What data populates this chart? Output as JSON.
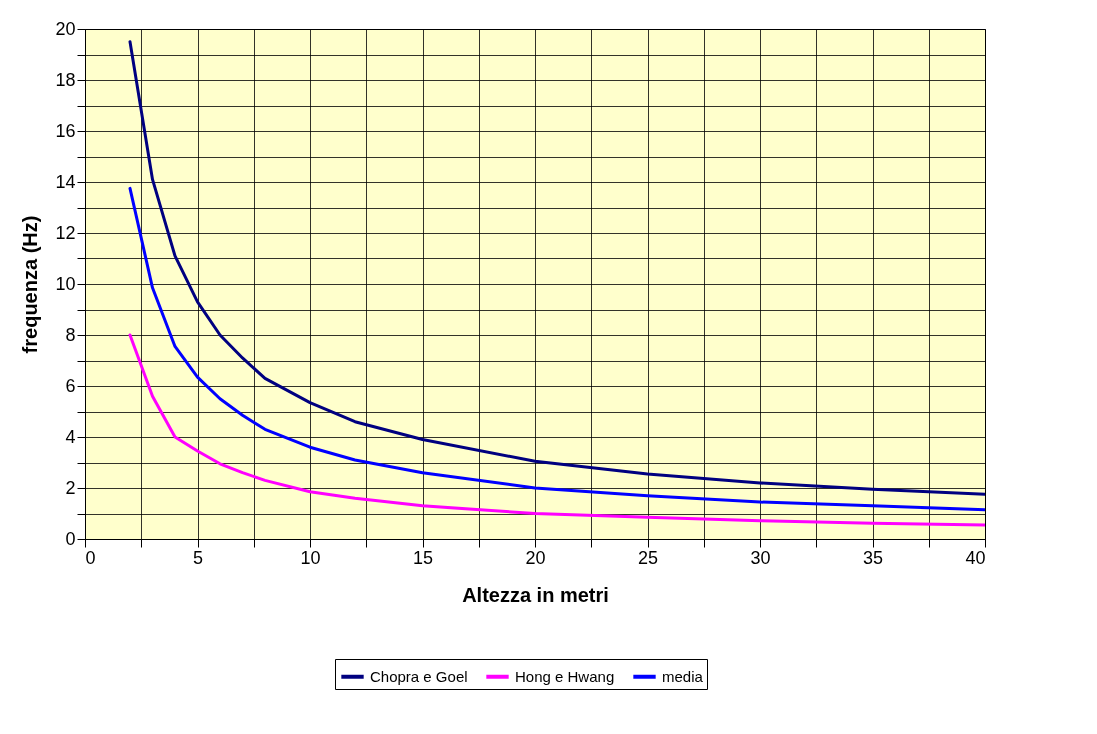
{
  "chart_data": {
    "type": "line",
    "xlabel": "Altezza in metri",
    "ylabel": "frequenza (Hz)",
    "x": [
      2,
      3,
      4,
      5,
      6,
      7,
      8,
      10,
      12,
      15,
      20,
      25,
      30,
      35,
      40
    ],
    "series": [
      {
        "name": "Chopra e Goel",
        "color": "#000080",
        "values": [
          19.5,
          14.1,
          11.1,
          9.3,
          8.0,
          7.1,
          6.3,
          5.35,
          4.6,
          3.9,
          3.05,
          2.55,
          2.2,
          1.95,
          1.75
        ]
      },
      {
        "name": "Hong e Hwang",
        "color": "#ff00ff",
        "values": [
          8.0,
          5.6,
          4.0,
          3.45,
          2.95,
          2.6,
          2.3,
          1.85,
          1.6,
          1.3,
          1.0,
          0.85,
          0.72,
          0.62,
          0.55
        ]
      },
      {
        "name": "media",
        "color": "#0000ff",
        "values": [
          13.75,
          9.85,
          7.55,
          6.35,
          5.5,
          4.85,
          4.3,
          3.6,
          3.1,
          2.6,
          2.0,
          1.7,
          1.45,
          1.3,
          1.15
        ]
      }
    ],
    "xlim": [
      0,
      40
    ],
    "xticks": [
      0,
      {
        "value": 2.5,
        "label": null
      },
      5,
      {
        "value": 7.5,
        "label": null
      },
      10,
      {
        "value": 12.5,
        "label": null
      },
      15,
      {
        "value": 17.5,
        "label": null
      },
      20,
      {
        "value": 22.5,
        "label": null
      },
      25,
      {
        "value": 27.5,
        "label": null
      },
      30,
      {
        "value": 32.5,
        "label": null
      },
      35,
      {
        "value": 37.5,
        "label": null
      },
      40
    ],
    "ylim": [
      0,
      20
    ],
    "yticks": [
      0,
      {
        "value": 1,
        "label": null
      },
      2,
      {
        "value": 3,
        "label": null
      },
      4,
      {
        "value": 5,
        "label": null
      },
      6,
      {
        "value": 7,
        "label": null
      },
      8,
      {
        "value": 9,
        "label": null
      },
      10,
      {
        "value": 11,
        "label": null
      },
      12,
      {
        "value": 13,
        "label": null
      },
      14,
      {
        "value": 15,
        "label": null
      },
      16,
      {
        "value": 17,
        "label": null
      },
      18,
      {
        "value": 19,
        "label": null
      },
      20
    ],
    "grid": true,
    "legend": "bottom",
    "marker": "none",
    "line_style": "solid"
  }
}
